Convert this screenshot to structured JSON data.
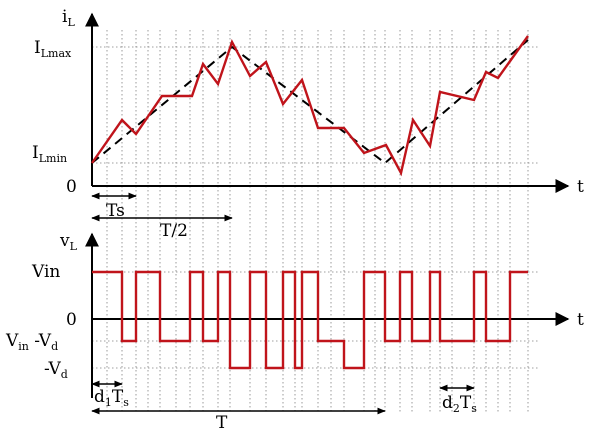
{
  "top": {
    "y_axis": {
      "main": "i",
      "sub": "L"
    },
    "ticks": [
      {
        "main": "I",
        "sub": "Lmax"
      },
      {
        "main": "I",
        "sub": "Lmin"
      },
      {
        "main": "0",
        "sub": ""
      }
    ],
    "x_axis": "t",
    "dims": [
      "Ts",
      "T/2"
    ]
  },
  "bottom": {
    "y_axis": {
      "main": "v",
      "sub": "L"
    },
    "ticks": [
      {
        "main": "Vin",
        "sub": ""
      },
      {
        "main": "0",
        "sub": ""
      }
    ],
    "tick_vin_vd": {
      "a": "V",
      "a_sub": "in",
      "b": " -V",
      "b_sub": "d"
    },
    "tick_neg_vd": {
      "a": "-V",
      "a_sub": "d"
    },
    "x_axis": "t",
    "dims": [
      {
        "a": "d",
        "a_sub": "1",
        "b": "T",
        "b_sub": "s"
      },
      {
        "a": "d",
        "a_sub": "2",
        "b": "T",
        "b_sub": "s"
      },
      {
        "a": "T",
        "a_sub": "",
        "b": "",
        "b_sub": ""
      }
    ]
  },
  "colors": {
    "trace": "#c0141b",
    "axis": "#000000",
    "grid": "#808080"
  }
}
